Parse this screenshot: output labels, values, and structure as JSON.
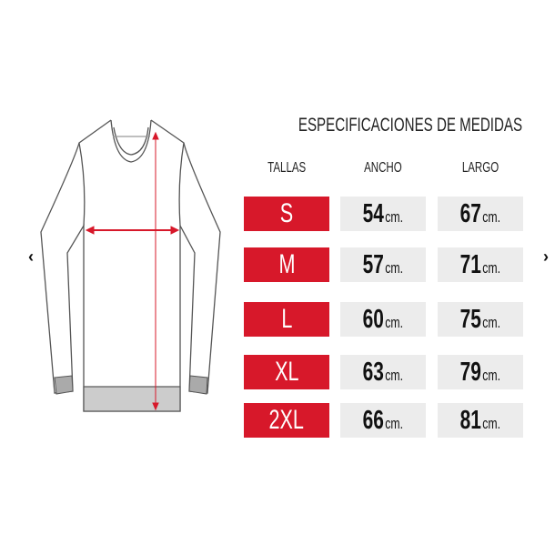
{
  "title": "ESPECIFICACIONES DE MEDIDAS",
  "headers": {
    "size": "TALLAS",
    "width": "ANCHO",
    "length": "LARGO"
  },
  "rows": [
    {
      "size": "S",
      "width": "54",
      "width_unit": "cm.",
      "length": "67",
      "length_unit": "cm."
    },
    {
      "size": "M",
      "width": "57",
      "width_unit": "cm.",
      "length": "71",
      "length_unit": "cm."
    },
    {
      "size": "L",
      "width": "60",
      "width_unit": "cm.",
      "length": "75",
      "length_unit": "cm."
    },
    {
      "size": "XL",
      "width": "63",
      "width_unit": "cm.",
      "length": "79",
      "length_unit": "cm."
    },
    {
      "size": "2XL",
      "width": "66",
      "width_unit": "cm.",
      "length": "81",
      "length_unit": "cm."
    }
  ],
  "nav": {
    "prev": "‹",
    "next": "›"
  },
  "colors": {
    "accent": "#d7182a",
    "cell_bg": "#ececec",
    "measure_arrow": "#d7182a"
  },
  "icons": {
    "garment": "sweater-illustration",
    "prev": "chevron-left-icon",
    "next": "chevron-right-icon"
  }
}
